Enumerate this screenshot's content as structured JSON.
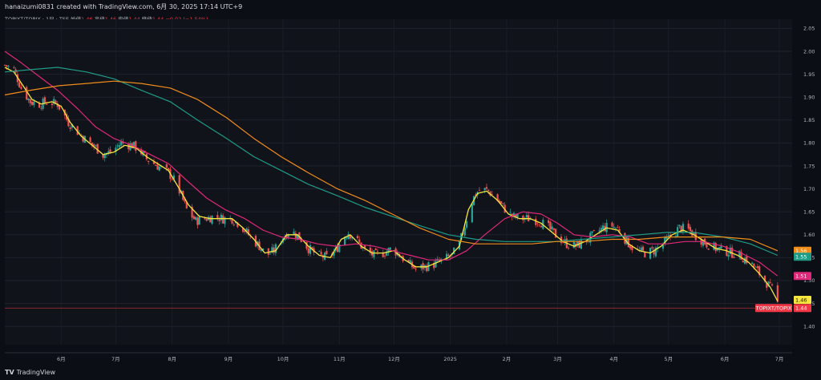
{
  "header": {
    "text": "hanaizumi0831 created with TradingView.com, 6月 30, 2025 17:14 UTC+9"
  },
  "legend": {
    "symbol": "TOPIXT/TOPIX · 1日 · TSE",
    "open_label": "始値",
    "open": "1.46",
    "high_label": "高値",
    "high": "1.46",
    "low_label": "安値",
    "low": "1.44",
    "close_label": "終値",
    "close": "1.44",
    "change": "−0.02 (−1.54%)"
  },
  "footer": {
    "logo": "TV",
    "brand": "TradingView"
  },
  "colors": {
    "up": "#26a69a",
    "down": "#ef5350",
    "yellow_ma": "#f5e63d",
    "pink_ma": "#e0287a",
    "teal_ma": "#1e9c86",
    "orange_ma": "#f08c1a",
    "last_price": "#f23645"
  },
  "chart_data": {
    "type": "candlestick",
    "y_range": [
      1.36,
      2.07
    ],
    "y_ticks": [
      "2.05",
      "2.00",
      "1.95",
      "1.90",
      "1.85",
      "1.80",
      "1.75",
      "1.70",
      "1.65",
      "1.60",
      "1.55",
      "1.50",
      "1.45",
      "1.40"
    ],
    "y_tick_values": [
      2.05,
      2.0,
      1.95,
      1.9,
      1.85,
      1.8,
      1.75,
      1.7,
      1.65,
      1.6,
      1.55,
      1.5,
      1.45,
      1.4
    ],
    "x_labels": [
      "6月",
      "7月",
      "8月",
      "9月",
      "10月",
      "11月",
      "12月",
      "2025",
      "2月",
      "3月",
      "4月",
      "5月",
      "6月",
      "7月"
    ],
    "x_label_dates": [
      "2024-06-01",
      "2024-07-01",
      "2024-08-01",
      "2024-09-01",
      "2024-10-01",
      "2024-11-01",
      "2024-12-01",
      "2025-01-01",
      "2025-02-01",
      "2025-03-01",
      "2025-04-01",
      "2025-05-01",
      "2025-06-01",
      "2025-07-01"
    ],
    "date_range": [
      "2024-05-01",
      "2025-07-08"
    ],
    "close_path": [
      [
        "2024-05-01",
        1.97
      ],
      [
        "2024-05-06",
        1.96
      ],
      [
        "2024-05-10",
        1.92
      ],
      [
        "2024-05-15",
        1.89
      ],
      [
        "2024-05-20",
        1.885
      ],
      [
        "2024-05-25",
        1.89
      ],
      [
        "2024-05-30",
        1.885
      ],
      [
        "2024-06-05",
        1.845
      ],
      [
        "2024-06-10",
        1.825
      ],
      [
        "2024-06-15",
        1.805
      ],
      [
        "2024-06-20",
        1.79
      ],
      [
        "2024-06-24",
        1.775
      ],
      [
        "2024-06-28",
        1.78
      ],
      [
        "2024-07-04",
        1.8
      ],
      [
        "2024-07-10",
        1.795
      ],
      [
        "2024-07-14",
        1.785
      ],
      [
        "2024-07-18",
        1.765
      ],
      [
        "2024-07-22",
        1.755
      ],
      [
        "2024-07-26",
        1.745
      ],
      [
        "2024-07-30",
        1.735
      ],
      [
        "2024-08-03",
        1.715
      ],
      [
        "2024-08-06",
        1.685
      ],
      [
        "2024-08-09",
        1.655
      ],
      [
        "2024-08-14",
        1.63
      ],
      [
        "2024-08-19",
        1.635
      ],
      [
        "2024-08-24",
        1.64
      ],
      [
        "2024-08-29",
        1.635
      ],
      [
        "2024-09-03",
        1.635
      ],
      [
        "2024-09-08",
        1.62
      ],
      [
        "2024-09-13",
        1.595
      ],
      [
        "2024-09-18",
        1.575
      ],
      [
        "2024-09-22",
        1.555
      ],
      [
        "2024-09-26",
        1.565
      ],
      [
        "2024-10-01",
        1.595
      ],
      [
        "2024-10-05",
        1.61
      ],
      [
        "2024-10-10",
        1.595
      ],
      [
        "2024-10-15",
        1.57
      ],
      [
        "2024-10-20",
        1.555
      ],
      [
        "2024-10-25",
        1.55
      ],
      [
        "2024-10-30",
        1.565
      ],
      [
        "2024-11-03",
        1.595
      ],
      [
        "2024-11-06",
        1.605
      ],
      [
        "2024-11-10",
        1.59
      ],
      [
        "2024-11-15",
        1.565
      ],
      [
        "2024-11-20",
        1.555
      ],
      [
        "2024-11-25",
        1.56
      ],
      [
        "2024-11-30",
        1.57
      ],
      [
        "2024-12-03",
        1.56
      ],
      [
        "2024-12-08",
        1.54
      ],
      [
        "2024-12-13",
        1.525
      ],
      [
        "2024-12-18",
        1.53
      ],
      [
        "2024-12-23",
        1.535
      ],
      [
        "2024-12-28",
        1.545
      ],
      [
        "2025-01-02",
        1.555
      ],
      [
        "2025-01-06",
        1.58
      ],
      [
        "2025-01-09",
        1.62
      ],
      [
        "2025-01-12",
        1.665
      ],
      [
        "2025-01-15",
        1.69
      ],
      [
        "2025-01-18",
        1.7
      ],
      [
        "2025-01-22",
        1.695
      ],
      [
        "2025-01-26",
        1.68
      ],
      [
        "2025-01-30",
        1.66
      ],
      [
        "2025-02-04",
        1.64
      ],
      [
        "2025-02-09",
        1.635
      ],
      [
        "2025-02-14",
        1.635
      ],
      [
        "2025-02-19",
        1.63
      ],
      [
        "2025-02-24",
        1.615
      ],
      [
        "2025-03-01",
        1.595
      ],
      [
        "2025-03-06",
        1.58
      ],
      [
        "2025-03-11",
        1.575
      ],
      [
        "2025-03-16",
        1.585
      ],
      [
        "2025-03-21",
        1.6
      ],
      [
        "2025-03-26",
        1.615
      ],
      [
        "2025-03-31",
        1.62
      ],
      [
        "2025-04-04",
        1.61
      ],
      [
        "2025-04-08",
        1.585
      ],
      [
        "2025-04-13",
        1.565
      ],
      [
        "2025-04-18",
        1.56
      ],
      [
        "2025-04-23",
        1.565
      ],
      [
        "2025-04-28",
        1.58
      ],
      [
        "2025-05-03",
        1.6
      ],
      [
        "2025-05-07",
        1.615
      ],
      [
        "2025-05-12",
        1.61
      ],
      [
        "2025-05-17",
        1.595
      ],
      [
        "2025-05-22",
        1.58
      ],
      [
        "2025-05-27",
        1.57
      ],
      [
        "2025-06-01",
        1.565
      ],
      [
        "2025-06-05",
        1.56
      ],
      [
        "2025-06-09",
        1.555
      ],
      [
        "2025-06-13",
        1.545
      ],
      [
        "2025-06-17",
        1.53
      ],
      [
        "2025-06-21",
        1.51
      ],
      [
        "2025-06-25",
        1.49
      ],
      [
        "2025-06-28",
        1.475
      ],
      [
        "2025-06-30",
        1.45
      ]
    ],
    "moving_averages": [
      {
        "color_key": "yellow_ma",
        "points": [
          [
            "2024-05-01",
            1.965
          ],
          [
            "2024-05-06",
            1.955
          ],
          [
            "2024-05-11",
            1.925
          ],
          [
            "2024-05-16",
            1.895
          ],
          [
            "2024-05-21",
            1.885
          ],
          [
            "2024-05-27",
            1.89
          ],
          [
            "2024-06-01",
            1.88
          ],
          [
            "2024-06-06",
            1.845
          ],
          [
            "2024-06-12",
            1.815
          ],
          [
            "2024-06-18",
            1.795
          ],
          [
            "2024-06-24",
            1.775
          ],
          [
            "2024-06-30",
            1.78
          ],
          [
            "2024-07-06",
            1.795
          ],
          [
            "2024-07-12",
            1.79
          ],
          [
            "2024-07-18",
            1.77
          ],
          [
            "2024-07-24",
            1.755
          ],
          [
            "2024-07-30",
            1.74
          ],
          [
            "2024-08-05",
            1.7
          ],
          [
            "2024-08-10",
            1.665
          ],
          [
            "2024-08-16",
            1.64
          ],
          [
            "2024-08-22",
            1.635
          ],
          [
            "2024-08-28",
            1.635
          ],
          [
            "2024-09-03",
            1.635
          ],
          [
            "2024-09-09",
            1.615
          ],
          [
            "2024-09-15",
            1.59
          ],
          [
            "2024-09-21",
            1.56
          ],
          [
            "2024-09-27",
            1.565
          ],
          [
            "2024-10-03",
            1.6
          ],
          [
            "2024-10-09",
            1.6
          ],
          [
            "2024-10-15",
            1.575
          ],
          [
            "2024-10-21",
            1.555
          ],
          [
            "2024-10-27",
            1.55
          ],
          [
            "2024-11-02",
            1.59
          ],
          [
            "2024-11-07",
            1.6
          ],
          [
            "2024-11-13",
            1.575
          ],
          [
            "2024-11-19",
            1.56
          ],
          [
            "2024-11-25",
            1.56
          ],
          [
            "2024-12-01",
            1.565
          ],
          [
            "2024-12-07",
            1.545
          ],
          [
            "2024-12-13",
            1.53
          ],
          [
            "2024-12-19",
            1.53
          ],
          [
            "2024-12-25",
            1.54
          ],
          [
            "2024-12-31",
            1.55
          ],
          [
            "2025-01-06",
            1.575
          ],
          [
            "2025-01-11",
            1.655
          ],
          [
            "2025-01-16",
            1.69
          ],
          [
            "2025-01-21",
            1.695
          ],
          [
            "2025-01-27",
            1.675
          ],
          [
            "2025-02-02",
            1.645
          ],
          [
            "2025-02-08",
            1.635
          ],
          [
            "2025-02-14",
            1.635
          ],
          [
            "2025-02-20",
            1.625
          ],
          [
            "2025-02-26",
            1.605
          ],
          [
            "2025-03-04",
            1.585
          ],
          [
            "2025-03-10",
            1.575
          ],
          [
            "2025-03-16",
            1.585
          ],
          [
            "2025-03-22",
            1.6
          ],
          [
            "2025-03-28",
            1.615
          ],
          [
            "2025-04-03",
            1.61
          ],
          [
            "2025-04-09",
            1.58
          ],
          [
            "2025-04-15",
            1.565
          ],
          [
            "2025-04-21",
            1.56
          ],
          [
            "2025-04-27",
            1.575
          ],
          [
            "2025-05-03",
            1.6
          ],
          [
            "2025-05-09",
            1.61
          ],
          [
            "2025-05-15",
            1.6
          ],
          [
            "2025-05-21",
            1.585
          ],
          [
            "2025-05-27",
            1.57
          ],
          [
            "2025-06-02",
            1.565
          ],
          [
            "2025-06-08",
            1.555
          ],
          [
            "2025-06-14",
            1.54
          ],
          [
            "2025-06-20",
            1.515
          ],
          [
            "2025-06-26",
            1.485
          ],
          [
            "2025-06-30",
            1.455
          ]
        ]
      },
      {
        "color_key": "pink_ma",
        "points": [
          [
            "2024-05-01",
            2.0
          ],
          [
            "2024-05-10",
            1.975
          ],
          [
            "2024-05-20",
            1.945
          ],
          [
            "2024-05-30",
            1.915
          ],
          [
            "2024-06-10",
            1.875
          ],
          [
            "2024-06-20",
            1.835
          ],
          [
            "2024-06-30",
            1.81
          ],
          [
            "2024-07-10",
            1.795
          ],
          [
            "2024-07-20",
            1.775
          ],
          [
            "2024-07-30",
            1.755
          ],
          [
            "2024-08-10",
            1.715
          ],
          [
            "2024-08-20",
            1.68
          ],
          [
            "2024-08-30",
            1.655
          ],
          [
            "2024-09-10",
            1.635
          ],
          [
            "2024-09-20",
            1.61
          ],
          [
            "2024-09-30",
            1.595
          ],
          [
            "2024-10-10",
            1.59
          ],
          [
            "2024-10-20",
            1.58
          ],
          [
            "2024-10-30",
            1.575
          ],
          [
            "2024-11-10",
            1.58
          ],
          [
            "2024-11-20",
            1.575
          ],
          [
            "2024-11-30",
            1.565
          ],
          [
            "2024-12-10",
            1.555
          ],
          [
            "2024-12-20",
            1.545
          ],
          [
            "2024-12-31",
            1.545
          ],
          [
            "2025-01-10",
            1.565
          ],
          [
            "2025-01-20",
            1.6
          ],
          [
            "2025-01-31",
            1.635
          ],
          [
            "2025-02-10",
            1.65
          ],
          [
            "2025-02-20",
            1.645
          ],
          [
            "2025-03-01",
            1.625
          ],
          [
            "2025-03-10",
            1.6
          ],
          [
            "2025-03-20",
            1.595
          ],
          [
            "2025-03-31",
            1.6
          ],
          [
            "2025-04-10",
            1.595
          ],
          [
            "2025-04-20",
            1.58
          ],
          [
            "2025-04-30",
            1.58
          ],
          [
            "2025-05-10",
            1.585
          ],
          [
            "2025-05-20",
            1.585
          ],
          [
            "2025-05-31",
            1.575
          ],
          [
            "2025-06-10",
            1.56
          ],
          [
            "2025-06-20",
            1.54
          ],
          [
            "2025-06-30",
            1.51
          ]
        ]
      },
      {
        "color_key": "teal_ma",
        "points": [
          [
            "2024-05-01",
            1.955
          ],
          [
            "2024-05-15",
            1.96
          ],
          [
            "2024-05-30",
            1.965
          ],
          [
            "2024-06-15",
            1.955
          ],
          [
            "2024-06-30",
            1.94
          ],
          [
            "2024-07-15",
            1.915
          ],
          [
            "2024-07-31",
            1.89
          ],
          [
            "2024-08-15",
            1.85
          ],
          [
            "2024-08-31",
            1.81
          ],
          [
            "2024-09-15",
            1.77
          ],
          [
            "2024-09-30",
            1.74
          ],
          [
            "2024-10-15",
            1.71
          ],
          [
            "2024-10-31",
            1.685
          ],
          [
            "2024-11-15",
            1.66
          ],
          [
            "2024-11-30",
            1.64
          ],
          [
            "2024-12-15",
            1.62
          ],
          [
            "2024-12-31",
            1.6
          ],
          [
            "2025-01-15",
            1.59
          ],
          [
            "2025-01-31",
            1.585
          ],
          [
            "2025-02-15",
            1.585
          ],
          [
            "2025-02-28",
            1.585
          ],
          [
            "2025-03-15",
            1.59
          ],
          [
            "2025-03-31",
            1.595
          ],
          [
            "2025-04-15",
            1.6
          ],
          [
            "2025-04-30",
            1.605
          ],
          [
            "2025-05-15",
            1.605
          ],
          [
            "2025-05-31",
            1.595
          ],
          [
            "2025-06-15",
            1.58
          ],
          [
            "2025-06-30",
            1.555
          ]
        ]
      },
      {
        "color_key": "orange_ma",
        "points": [
          [
            "2024-05-01",
            1.905
          ],
          [
            "2024-05-15",
            1.915
          ],
          [
            "2024-05-31",
            1.925
          ],
          [
            "2024-06-15",
            1.93
          ],
          [
            "2024-06-30",
            1.935
          ],
          [
            "2024-07-15",
            1.93
          ],
          [
            "2024-07-31",
            1.92
          ],
          [
            "2024-08-15",
            1.895
          ],
          [
            "2024-08-31",
            1.855
          ],
          [
            "2024-09-15",
            1.81
          ],
          [
            "2024-09-30",
            1.77
          ],
          [
            "2024-10-15",
            1.735
          ],
          [
            "2024-10-31",
            1.7
          ],
          [
            "2024-11-15",
            1.675
          ],
          [
            "2024-11-30",
            1.645
          ],
          [
            "2024-12-15",
            1.615
          ],
          [
            "2024-12-31",
            1.59
          ],
          [
            "2025-01-15",
            1.58
          ],
          [
            "2025-01-31",
            1.58
          ],
          [
            "2025-02-15",
            1.58
          ],
          [
            "2025-02-28",
            1.585
          ],
          [
            "2025-03-15",
            1.585
          ],
          [
            "2025-03-31",
            1.59
          ],
          [
            "2025-04-15",
            1.59
          ],
          [
            "2025-04-30",
            1.595
          ],
          [
            "2025-05-15",
            1.595
          ],
          [
            "2025-05-31",
            1.595
          ],
          [
            "2025-06-15",
            1.59
          ],
          [
            "2025-06-30",
            1.565
          ]
        ]
      }
    ],
    "price_tags": [
      {
        "label": "1.56",
        "value": 1.565,
        "color_key": "orange_ma"
      },
      {
        "label": "1.55",
        "value": 1.552,
        "color_key": "teal_ma"
      },
      {
        "label": "1.51",
        "value": 1.51,
        "color_key": "pink_ma"
      },
      {
        "label": "1.46",
        "value": 1.458,
        "color_key": "yellow_ma"
      },
      {
        "label": "TOPIXT/TOPIX",
        "value": 1.44,
        "color_key": "last_price",
        "value_label": "1.44"
      }
    ],
    "last_price_line": 1.44
  }
}
